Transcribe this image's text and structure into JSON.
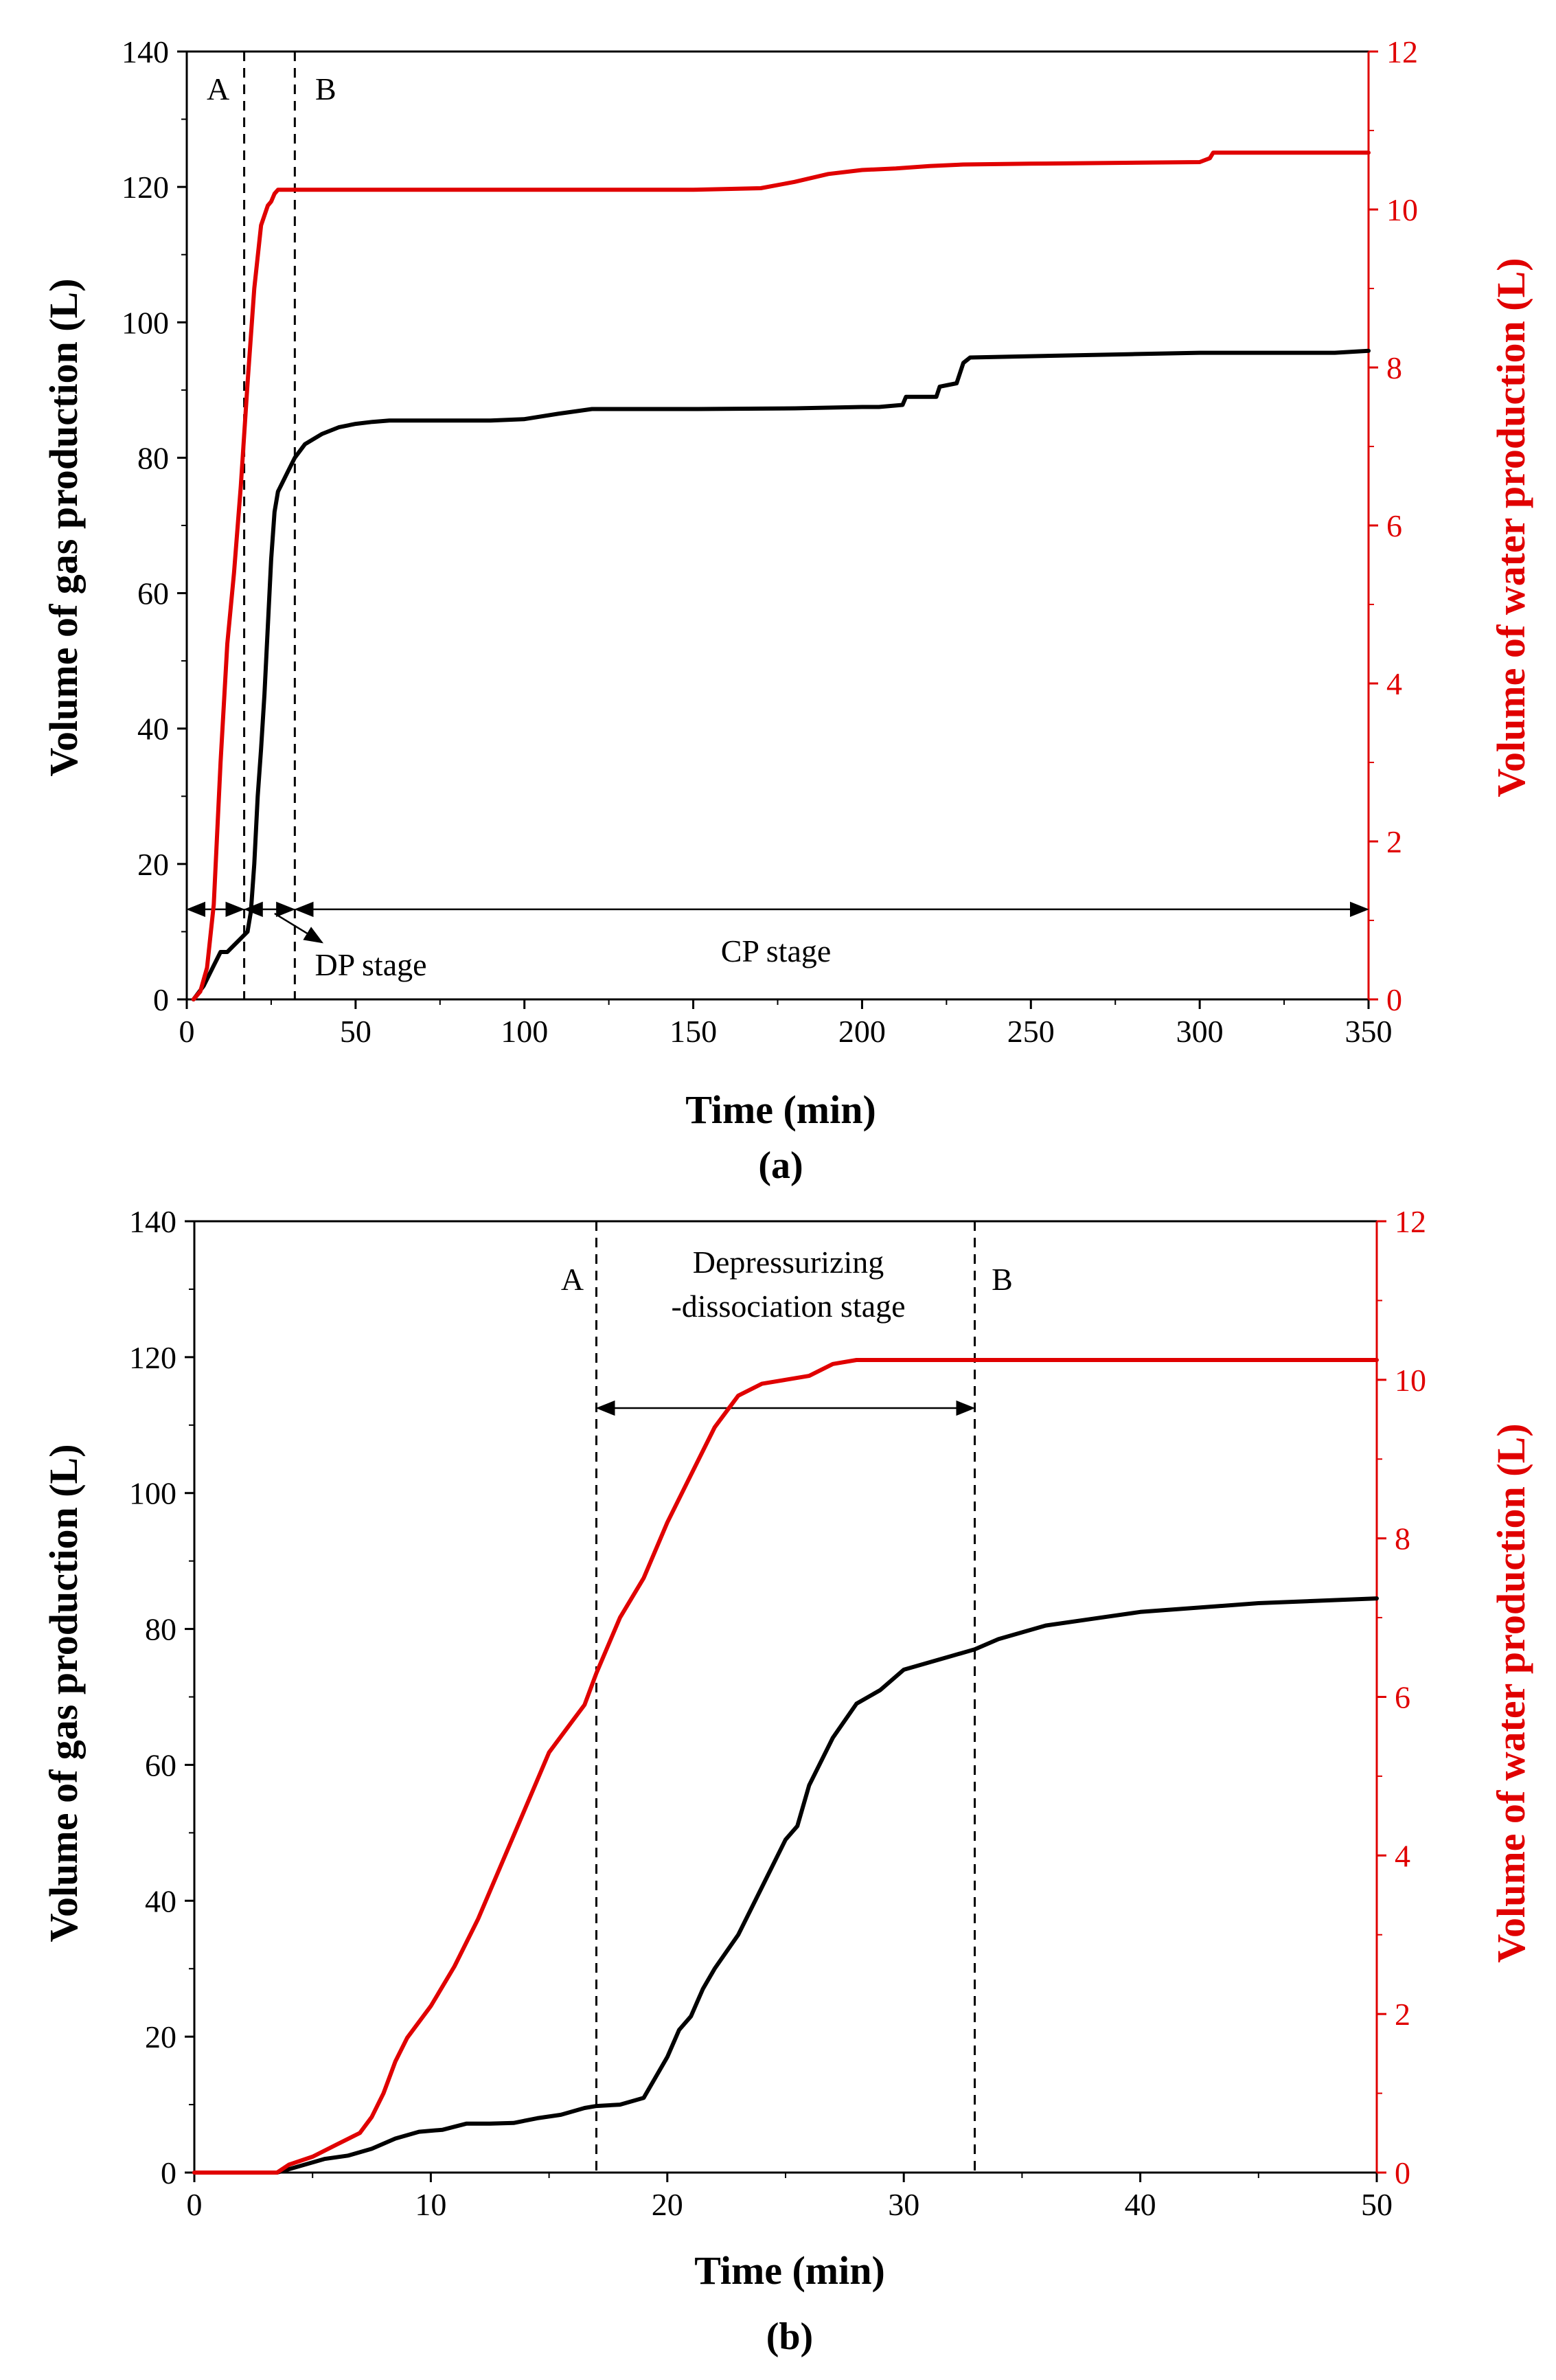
{
  "colors": {
    "gas": "#000000",
    "water": "#e00000"
  },
  "chart_data": [
    {
      "type": "line",
      "panel_label": "(a)",
      "xlabel": "Time (min)",
      "ylabel": "Volume of gas production (L)",
      "y2label": "Volume of water production (L)",
      "xlim": [
        0,
        350
      ],
      "ylim": [
        0,
        140
      ],
      "y2lim": [
        0,
        12
      ],
      "xticks": [
        0,
        50,
        100,
        150,
        200,
        250,
        300,
        350
      ],
      "yticks": [
        0,
        20,
        40,
        60,
        80,
        100,
        120,
        140
      ],
      "y2ticks": [
        0,
        2,
        4,
        6,
        8,
        10,
        12
      ],
      "vlines": [
        {
          "x": 17,
          "label": "A"
        },
        {
          "x": 32,
          "label": "B"
        }
      ],
      "annotations": {
        "dp_stage": "DP stage",
        "cp_stage": "CP stage"
      },
      "series": [
        {
          "name": "Volume of gas production",
          "axis": "left",
          "color": "#000000",
          "x": [
            2,
            5,
            8,
            10,
            12,
            14,
            16,
            18,
            19,
            20,
            21,
            22,
            23,
            24,
            25,
            26,
            27,
            28,
            30,
            32,
            35,
            40,
            45,
            50,
            55,
            60,
            70,
            80,
            90,
            100,
            110,
            120,
            150,
            180,
            200,
            205,
            212,
            213,
            222,
            223,
            228,
            230,
            232,
            250,
            280,
            300,
            340,
            350
          ],
          "y": [
            0,
            2,
            5,
            7,
            7,
            8,
            9,
            10,
            13,
            20,
            30,
            37,
            45,
            55,
            65,
            72,
            75,
            76,
            78,
            80,
            82,
            83.5,
            84.5,
            85,
            85.3,
            85.5,
            85.5,
            85.5,
            85.5,
            85.7,
            86.5,
            87.2,
            87.2,
            87.3,
            87.5,
            87.5,
            87.8,
            89,
            89,
            90.5,
            91,
            94,
            94.8,
            95,
            95.3,
            95.5,
            95.5,
            95.8
          ]
        },
        {
          "name": "Volume of water production",
          "axis": "right",
          "color": "#e00000",
          "x": [
            2,
            4,
            6,
            8,
            10,
            12,
            14,
            16,
            18,
            20,
            22,
            24,
            25,
            26,
            27,
            28,
            30,
            32,
            50,
            100,
            150,
            170,
            180,
            190,
            200,
            210,
            220,
            230,
            250,
            300,
            303,
            304,
            320,
            350
          ],
          "y": [
            0,
            0.1,
            0.4,
            1.2,
            3.0,
            4.5,
            5.4,
            6.5,
            7.8,
            9.0,
            9.8,
            10.05,
            10.1,
            10.2,
            10.25,
            10.25,
            10.25,
            10.25,
            10.25,
            10.25,
            10.25,
            10.27,
            10.35,
            10.45,
            10.5,
            10.52,
            10.55,
            10.57,
            10.58,
            10.6,
            10.65,
            10.72,
            10.72,
            10.72
          ]
        }
      ]
    },
    {
      "type": "line",
      "panel_label": "(b)",
      "xlabel": "Time (min)",
      "ylabel": "Volume of gas production (L)",
      "y2label": "Volume of water production (L)",
      "xlim": [
        0,
        50
      ],
      "ylim": [
        0,
        140
      ],
      "y2lim": [
        0,
        12
      ],
      "xticks": [
        0,
        10,
        20,
        30,
        40,
        50
      ],
      "yticks": [
        0,
        20,
        40,
        60,
        80,
        100,
        120,
        140
      ],
      "y2ticks": [
        0,
        2,
        4,
        6,
        8,
        10,
        12
      ],
      "vlines": [
        {
          "x": 17,
          "label": "A"
        },
        {
          "x": 33,
          "label": "B"
        }
      ],
      "annotations": {
        "stage_line1": "Depressurizing",
        "stage_line2": "-dissociation stage"
      },
      "series": [
        {
          "name": "Volume of gas production",
          "axis": "left",
          "color": "#000000",
          "x": [
            0,
            3.5,
            4.5,
            5.5,
            6.5,
            7.5,
            8.5,
            9.5,
            10.5,
            11.5,
            12.5,
            13.5,
            14.5,
            15.5,
            16.5,
            17,
            18,
            19,
            19.5,
            20,
            20.5,
            21,
            21.5,
            22,
            23,
            24,
            25,
            25.5,
            26,
            27,
            28,
            29,
            30,
            31,
            32,
            33,
            34,
            36,
            38,
            40,
            45,
            50
          ],
          "y": [
            0,
            0,
            1,
            2,
            2.5,
            3.5,
            5,
            6,
            6.3,
            7.2,
            7.2,
            7.3,
            8,
            8.5,
            9.5,
            9.8,
            10,
            11,
            14,
            17,
            21,
            23,
            27,
            30,
            35,
            42,
            49,
            51,
            57,
            64,
            69,
            71,
            74,
            75,
            76,
            77,
            78.5,
            80.5,
            81.5,
            82.5,
            83.8,
            84.5
          ]
        },
        {
          "name": "Volume of water production",
          "axis": "right",
          "color": "#e00000",
          "x": [
            0,
            3.5,
            4,
            5,
            6,
            7,
            7.5,
            8,
            8.5,
            9,
            9.5,
            10,
            11,
            12,
            13,
            14,
            15,
            16,
            16.5,
            17,
            18,
            19,
            20,
            21,
            22,
            23,
            24,
            25,
            26,
            27,
            28,
            29,
            30,
            33,
            40,
            50
          ],
          "y": [
            0,
            0,
            0.1,
            0.2,
            0.35,
            0.5,
            0.7,
            1.0,
            1.4,
            1.7,
            1.9,
            2.1,
            2.6,
            3.2,
            3.9,
            4.6,
            5.3,
            5.7,
            5.9,
            6.3,
            7.0,
            7.5,
            8.2,
            8.8,
            9.4,
            9.8,
            9.95,
            10.0,
            10.05,
            10.2,
            10.25,
            10.25,
            10.25,
            10.25,
            10.25,
            10.25
          ]
        }
      ]
    }
  ]
}
